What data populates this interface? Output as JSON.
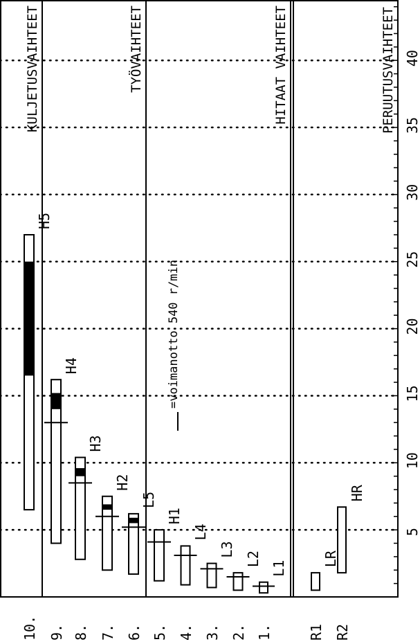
{
  "chart_data": {
    "type": "bar",
    "orientation": "rotated",
    "value_axis": {
      "range": [
        0,
        45
      ],
      "ticks": [
        5,
        10,
        15,
        20,
        25,
        30,
        35,
        40
      ],
      "tick_labels": [
        "5",
        "10",
        "15",
        "20",
        "25",
        "30",
        "35",
        "40"
      ],
      "minor_step": 1,
      "gridlines": "dotted at major ticks"
    },
    "groups": [
      {
        "id": "kuljetus",
        "label": "KULJETUSVAIHTEET"
      },
      {
        "id": "tyo",
        "label": "TYÖVAIHTEET"
      },
      {
        "id": "hitaat",
        "label": "HITAAT VAIHTEET"
      },
      {
        "id": "perutus",
        "label": "PERUUTUSVAIHTEET"
      }
    ],
    "gears": [
      {
        "label": "10.",
        "group": "kuljetus",
        "range_label": "H5",
        "start": 6.5,
        "end": 27,
        "pto_band": [
          16.5,
          25
        ],
        "pto_speed": null
      },
      {
        "label": "9.",
        "group": "kuljetus",
        "range_label": "H4",
        "start": 4,
        "end": 16.2,
        "pto_band": [
          14,
          15.2
        ],
        "pto_speed": 13
      },
      {
        "label": "8.",
        "group": "kuljetus",
        "range_label": "H3",
        "start": 2.8,
        "end": 10.4,
        "pto_band": [
          9,
          9.6
        ],
        "pto_speed": 8.5
      },
      {
        "label": "7.",
        "group": "kuljetus",
        "range_label": "H2",
        "start": 2,
        "end": 7.5,
        "pto_band": [
          6.5,
          6.9
        ],
        "pto_speed": 6
      },
      {
        "label": "6.",
        "group": "tyo",
        "range_label": "L5",
        "start": 1.7,
        "end": 6.2,
        "pto_band": [
          5.5,
          5.9
        ],
        "pto_speed": 5.2
      },
      {
        "label": "5.",
        "group": "tyo",
        "range_label": "H1",
        "start": 1.2,
        "end": 5,
        "pto_band": null,
        "pto_speed": 4.1
      },
      {
        "label": "4.",
        "group": "tyo",
        "range_label": "L4",
        "start": 0.9,
        "end": 3.8,
        "pto_band": null,
        "pto_speed": 3.1
      },
      {
        "label": "3.",
        "group": "tyo",
        "range_label": "L3",
        "start": 0.7,
        "end": 2.5,
        "pto_band": null,
        "pto_speed": 2.1
      },
      {
        "label": "2.",
        "group": "tyo",
        "range_label": "L2",
        "start": 0.5,
        "end": 1.8,
        "pto_band": null,
        "pto_speed": 1.5
      },
      {
        "label": "1.",
        "group": "tyo",
        "range_label": "L1",
        "start": 0.3,
        "end": 1.1,
        "pto_band": null,
        "pto_speed": 0.8
      },
      {
        "label": "R1",
        "group": "perutus",
        "range_label": "LR",
        "start": 0.5,
        "end": 1.8,
        "pto_band": null,
        "pto_speed": null
      },
      {
        "label": "R2",
        "group": "perutus",
        "range_label": "HR",
        "start": 1.8,
        "end": 6.7,
        "pto_band": null,
        "pto_speed": null
      }
    ],
    "annotation": "=voimanotto 540 r/min",
    "colors": {
      "line": "#000000",
      "pto_band": "#000000",
      "background": "#ffffff"
    }
  }
}
